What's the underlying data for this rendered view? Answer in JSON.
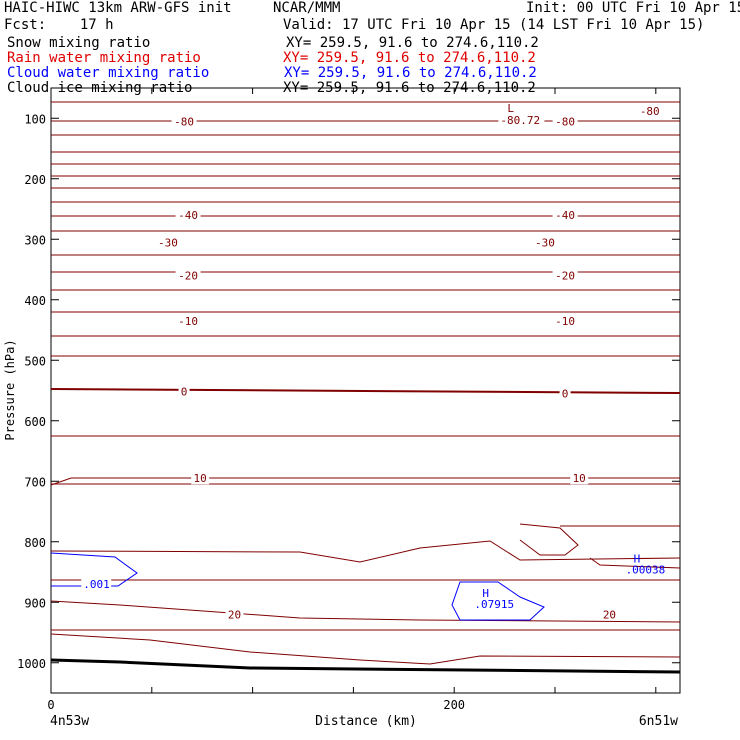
{
  "header": {
    "title": "HAIC-HIWC 13km ARW-GFS init",
    "org": "NCAR/MMM",
    "init": "Init: 00 UTC Fri 10 Apr 15",
    "fcst": "Fcst:    17 h",
    "valid": "Valid: 17 UTC Fri 10 Apr 15 (14 LST Fri 10 Apr 15)"
  },
  "fields": [
    {
      "name": "Snow mixing ratio",
      "xy": "XY= 259.5, 91.6 to 274.6,110.2",
      "color": "#000000"
    },
    {
      "name": "Rain water mixing ratio",
      "xy": "XY= 259.5, 91.6 to 274.6,110.2",
      "color": "#e00000"
    },
    {
      "name": "Cloud water mixing ratio",
      "xy": "XY= 259.5, 91.6 to 274.6,110.2",
      "color": "#0000ff"
    },
    {
      "name": "Cloud ice mixing ratio",
      "xy": "XY= 259.5, 91.6 to 274.6,110.2",
      "color": "#000000"
    }
  ],
  "chart_data": {
    "type": "line",
    "ylabel": "Pressure (hPa)",
    "xlabel": "Distance (km)",
    "x_left_label": "4n53w",
    "x_right_label": "6n51w",
    "xlim": [
      0,
      312
    ],
    "ylim": [
      1050,
      50
    ],
    "xticks": [
      0,
      200
    ],
    "yticks": [
      100,
      200,
      300,
      400,
      500,
      600,
      700,
      800,
      900,
      1000
    ],
    "temperature_labels": [
      {
        "text": "-80",
        "x": 66,
        "p": 105
      },
      {
        "text": "-80",
        "x": 255,
        "p": 105
      },
      {
        "text": "-80",
        "x": 297,
        "p": 88
      },
      {
        "text": "-40",
        "x": 68,
        "p": 260
      },
      {
        "text": "-40",
        "x": 255,
        "p": 260
      },
      {
        "text": "-30",
        "x": 58,
        "p": 305
      },
      {
        "text": "-30",
        "x": 245,
        "p": 305
      },
      {
        "text": "-20",
        "x": 68,
        "p": 360
      },
      {
        "text": "-20",
        "x": 255,
        "p": 360
      },
      {
        "text": "-10",
        "x": 68,
        "p": 435
      },
      {
        "text": "-10",
        "x": 255,
        "p": 435
      },
      {
        "text": "0",
        "x": 66,
        "p": 552
      },
      {
        "text": "0",
        "x": 255,
        "p": 555
      },
      {
        "text": "10",
        "x": 74,
        "p": 695
      },
      {
        "text": "10",
        "x": 262,
        "p": 695
      },
      {
        "text": "20",
        "x": 91,
        "p": 920
      },
      {
        "text": "20",
        "x": 277,
        "p": 920
      }
    ],
    "low_label": {
      "symbol": "L",
      "value": "-80.72",
      "x": 213,
      "p": 100
    },
    "cloud_water_highs": [
      {
        "symbol": "H",
        "value": ".07915",
        "x": 210,
        "p": 895
      },
      {
        "symbol": "H",
        "value": ".00038",
        "x": 285,
        "p": 838
      }
    ],
    "cloud_water_labels": [
      {
        "text": ".001",
        "x": 16,
        "p": 873
      }
    ],
    "colors": {
      "temperature": "#800000",
      "terrain": "#000000",
      "cloud_water": "#0000ff"
    }
  }
}
